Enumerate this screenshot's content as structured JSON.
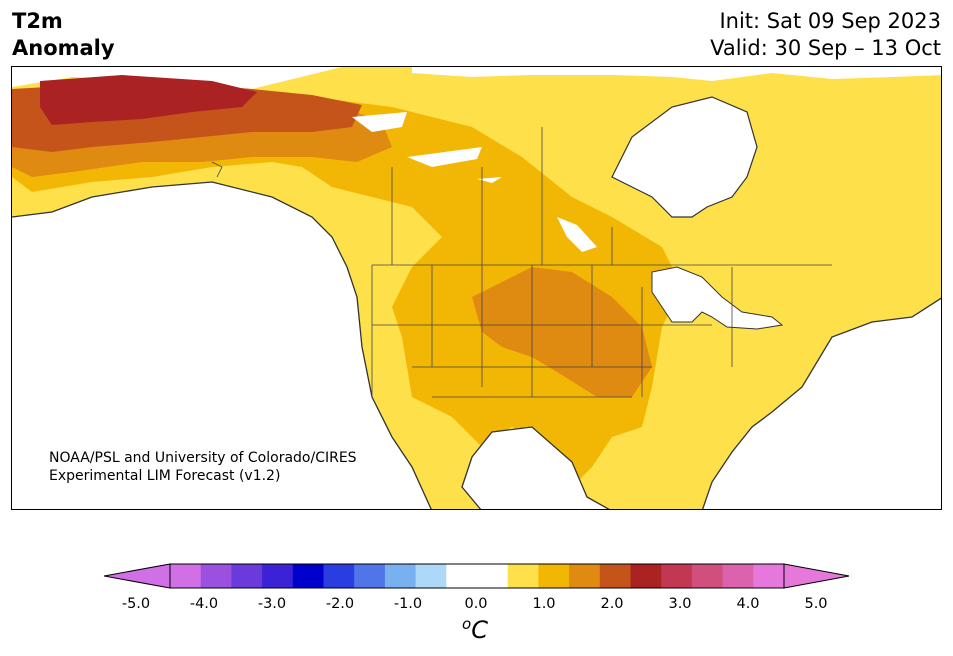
{
  "title": {
    "left_line1": "T2m",
    "left_line2": "Anomaly",
    "init": "Init: Sat 09 Sep 2023",
    "valid": "Valid: 30 Sep – 13 Oct"
  },
  "credit": {
    "line1": "NOAA/PSL and University of Colorado/CIRES",
    "line2": "Experimental LIM Forecast (v1.2)"
  },
  "colorbar": {
    "unit_base": "C",
    "unit_sup": "o",
    "ticks": [
      "-5.0",
      "-4.0",
      "-3.0",
      "-2.0",
      "-1.0",
      "0.0",
      "1.0",
      "2.0",
      "3.0",
      "4.0",
      "5.0"
    ],
    "colors": [
      "#d170e6",
      "#9b50e0",
      "#6b3adb",
      "#3b22d6",
      "#0000cd",
      "#2a3de0",
      "#4f75e8",
      "#78b0f0",
      "#add8f7",
      "#ffffff",
      "#ffffff",
      "#fee04a",
      "#f2b705",
      "#df8a10",
      "#c4541a",
      "#aa2222",
      "#c23751",
      "#d04f7d",
      "#db62ad",
      "#e678db"
    ],
    "under_color": "#d170e6",
    "over_color": "#e678db"
  },
  "map": {
    "projection": "North America",
    "region_colors": {
      "land_1_to_2": "#fee04a",
      "land_2_to_3": "#f2b705",
      "land_3_to_4": "#df8a10",
      "land_4_to_5": "#c4541a",
      "land_5_plus": "#aa2222",
      "ocean": "#ffffff",
      "coastline": "#333333"
    }
  }
}
